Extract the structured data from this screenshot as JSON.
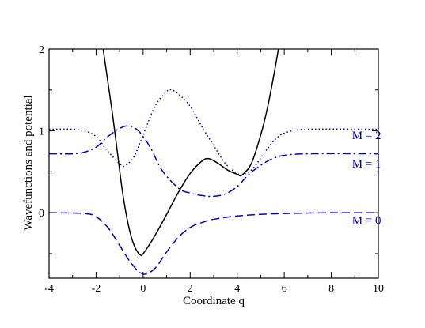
{
  "chart_data": {
    "type": "line",
    "title": "",
    "xlabel": "Coordinate q",
    "ylabel": "Wavefunctions and potential",
    "xlim": [
      -4,
      10
    ],
    "ylim": [
      -0.8,
      2
    ],
    "xticks": [
      -4,
      -2,
      0,
      2,
      4,
      6,
      8,
      10
    ],
    "yticks": [
      0,
      1,
      2
    ],
    "x_tick_labels": [
      "-4",
      "-2",
      "0",
      "2",
      "4",
      "6",
      "8",
      "10"
    ],
    "y_tick_labels": [
      "0",
      "1",
      "2"
    ],
    "grid": false,
    "series": [
      {
        "name": "",
        "role": "potential",
        "style": "solid",
        "color": "#000000",
        "points": [
          [
            -1.7,
            2.0
          ],
          [
            -1.5,
            1.6
          ],
          [
            -1.3,
            1.2
          ],
          [
            -1.1,
            0.75
          ],
          [
            -0.9,
            0.3
          ],
          [
            -0.7,
            -0.05
          ],
          [
            -0.5,
            -0.3
          ],
          [
            -0.3,
            -0.45
          ],
          [
            -0.1,
            -0.52
          ],
          [
            0.0,
            -0.5
          ],
          [
            0.2,
            -0.42
          ],
          [
            0.5,
            -0.28
          ],
          [
            1.0,
            -0.02
          ],
          [
            1.5,
            0.25
          ],
          [
            2.0,
            0.48
          ],
          [
            2.5,
            0.63
          ],
          [
            2.8,
            0.66
          ],
          [
            3.2,
            0.6
          ],
          [
            3.6,
            0.52
          ],
          [
            4.0,
            0.47
          ],
          [
            4.2,
            0.46
          ],
          [
            4.6,
            0.6
          ],
          [
            5.0,
            0.95
          ],
          [
            5.3,
            1.3
          ],
          [
            5.6,
            1.75
          ],
          [
            5.75,
            2.0
          ]
        ]
      },
      {
        "name": "M = 0",
        "role": "wavefunction",
        "style": "dashed",
        "color": "#0000cc",
        "offset": 0.0,
        "points": [
          [
            -4,
            0.0
          ],
          [
            -2.5,
            -0.01
          ],
          [
            -2.0,
            -0.05
          ],
          [
            -1.5,
            -0.18
          ],
          [
            -1.0,
            -0.4
          ],
          [
            -0.5,
            -0.62
          ],
          [
            0.0,
            -0.75
          ],
          [
            0.5,
            -0.68
          ],
          [
            1.0,
            -0.48
          ],
          [
            1.5,
            -0.3
          ],
          [
            2.0,
            -0.18
          ],
          [
            2.5,
            -0.12
          ],
          [
            3.0,
            -0.08
          ],
          [
            4.0,
            -0.04
          ],
          [
            5.0,
            -0.02
          ],
          [
            6.0,
            -0.01
          ],
          [
            8.0,
            0.0
          ],
          [
            10.0,
            0.0
          ]
        ]
      },
      {
        "name": "M = 1",
        "role": "wavefunction",
        "style": "dashdot",
        "color": "#0000cc",
        "offset": 0.72,
        "points": [
          [
            -4,
            0.72
          ],
          [
            -3.0,
            0.72
          ],
          [
            -2.5,
            0.74
          ],
          [
            -2.0,
            0.8
          ],
          [
            -1.5,
            0.93
          ],
          [
            -1.0,
            1.03
          ],
          [
            -0.6,
            1.06
          ],
          [
            -0.2,
            1.0
          ],
          [
            0.3,
            0.8
          ],
          [
            0.8,
            0.52
          ],
          [
            1.5,
            0.3
          ],
          [
            2.0,
            0.24
          ],
          [
            2.5,
            0.21
          ],
          [
            3.0,
            0.2
          ],
          [
            3.5,
            0.23
          ],
          [
            4.0,
            0.32
          ],
          [
            4.5,
            0.47
          ],
          [
            5.0,
            0.58
          ],
          [
            5.5,
            0.66
          ],
          [
            6.0,
            0.7
          ],
          [
            7.0,
            0.72
          ],
          [
            10.0,
            0.72
          ]
        ]
      },
      {
        "name": "M = 2",
        "role": "wavefunction",
        "style": "dotted",
        "color": "#0000cc",
        "offset": 1.02,
        "points": [
          [
            -4,
            1.02
          ],
          [
            -3.0,
            1.02
          ],
          [
            -2.5,
            1.0
          ],
          [
            -2.0,
            0.93
          ],
          [
            -1.5,
            0.75
          ],
          [
            -1.0,
            0.6
          ],
          [
            -0.8,
            0.57
          ],
          [
            -0.4,
            0.68
          ],
          [
            0.0,
            0.95
          ],
          [
            0.5,
            1.3
          ],
          [
            1.0,
            1.48
          ],
          [
            1.2,
            1.5
          ],
          [
            1.5,
            1.45
          ],
          [
            2.0,
            1.3
          ],
          [
            2.5,
            1.05
          ],
          [
            3.0,
            0.82
          ],
          [
            3.5,
            0.6
          ],
          [
            4.0,
            0.48
          ],
          [
            4.3,
            0.47
          ],
          [
            4.7,
            0.55
          ],
          [
            5.2,
            0.75
          ],
          [
            5.7,
            0.92
          ],
          [
            6.2,
            0.99
          ],
          [
            7.0,
            1.02
          ],
          [
            10.0,
            1.02
          ]
        ]
      }
    ],
    "annotations": [
      {
        "text": "M = 2",
        "x": 9.5,
        "y": 0.95,
        "color": "#0000cc"
      },
      {
        "text": "M = 1",
        "x": 9.5,
        "y": 0.6,
        "color": "#0000cc"
      },
      {
        "text": "M = 0",
        "x": 9.5,
        "y": -0.09,
        "color": "#0000cc"
      }
    ]
  }
}
